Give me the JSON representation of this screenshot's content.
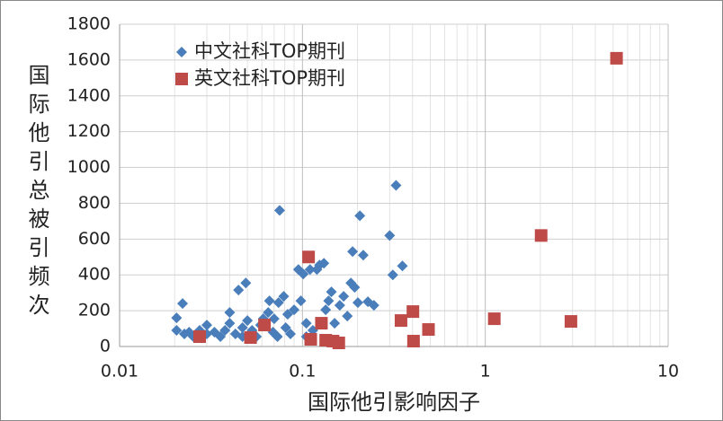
{
  "chart_data": {
    "type": "scatter",
    "x_label": "国际他引影响因子",
    "y_label": "国际他引总被引频次",
    "x_scale": "log",
    "xlim": [
      0.01,
      10
    ],
    "xticks": [
      0.01,
      0.1,
      1,
      10
    ],
    "ylim": [
      0,
      1800
    ],
    "yticks": [
      0,
      200,
      400,
      600,
      800,
      1000,
      1200,
      1400,
      1600,
      1800
    ],
    "grid": true,
    "minor_grid": true,
    "legend": "upper left",
    "series": [
      {
        "name": "中文社科TOP期刊",
        "color": "#4a7ebb",
        "marker": "diamond",
        "x": [
          0.0205,
          0.0205,
          0.0221,
          0.0226,
          0.024,
          0.0253,
          0.0274,
          0.03,
          0.033,
          0.0356,
          0.0377,
          0.04,
          0.04,
          0.043,
          0.0447,
          0.047,
          0.049,
          0.05,
          0.053,
          0.056,
          0.059,
          0.061,
          0.065,
          0.066,
          0.069,
          0.07,
          0.073,
          0.074,
          0.075,
          0.079,
          0.081,
          0.083,
          0.086,
          0.09,
          0.095,
          0.098,
          0.101,
          0.105,
          0.11,
          0.114,
          0.12,
          0.124,
          0.131,
          0.134,
          0.139,
          0.144,
          0.15,
          0.16,
          0.168,
          0.176,
          0.184,
          0.188,
          0.193,
          0.201,
          0.206,
          0.215,
          0.228,
          0.246,
          0.3,
          0.312,
          0.325,
          0.352,
          0.03,
          0.047,
          0.105
        ],
        "values": [
          160,
          90,
          240,
          70,
          80,
          55,
          90,
          70,
          80,
          55,
          90,
          190,
          130,
          70,
          315,
          105,
          355,
          145,
          90,
          55,
          120,
          155,
          190,
          255,
          80,
          155,
          55,
          245,
          760,
          280,
          105,
          180,
          70,
          205,
          430,
          255,
          405,
          130,
          430,
          90,
          430,
          455,
          465,
          205,
          255,
          305,
          130,
          230,
          280,
          170,
          355,
          530,
          330,
          245,
          730,
          510,
          250,
          230,
          620,
          400,
          900,
          450,
          120,
          55,
          55
        ]
      },
      {
        "name": "英文社科TOP期刊",
        "color": "#be4b48",
        "marker": "square",
        "x": [
          0.0274,
          0.052,
          0.062,
          0.108,
          0.111,
          0.127,
          0.134,
          0.147,
          0.158,
          0.346,
          0.402,
          0.405,
          0.489,
          1.12,
          2.02,
          2.94,
          5.22
        ],
        "values": [
          55,
          50,
          120,
          500,
          40,
          130,
          35,
          30,
          20,
          145,
          195,
          30,
          95,
          155,
          620,
          140,
          1610
        ]
      }
    ]
  }
}
